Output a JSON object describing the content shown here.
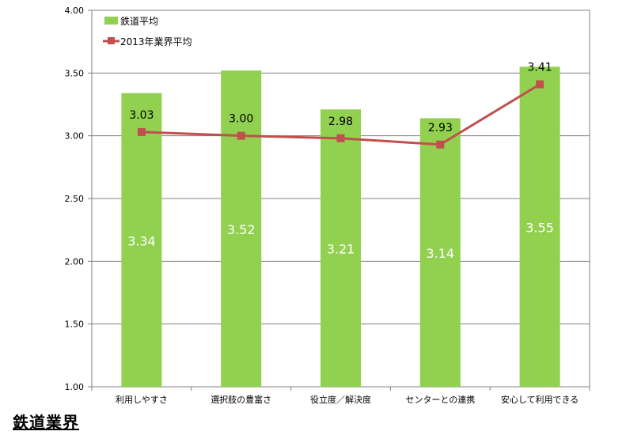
{
  "chart_data": {
    "type": "bar",
    "categories": [
      "利用しやすさ",
      "選択肢の豊富さ",
      "役立度／解決度",
      "センターとの連携",
      "安心して利用できる"
    ],
    "series": [
      {
        "name": "鉄道平均",
        "type": "bar",
        "color": "#92d050",
        "values": [
          3.34,
          3.52,
          3.21,
          3.14,
          3.55
        ],
        "value_labels": [
          "3.34",
          "3.52",
          "3.21",
          "3.14",
          "3.55"
        ]
      },
      {
        "name": "2013年業界平均",
        "type": "line",
        "color": "#c0504d",
        "values": [
          3.03,
          3.0,
          2.98,
          2.93,
          3.41
        ],
        "value_labels": [
          "3.03",
          "3.00",
          "2.98",
          "2.93",
          "3.41"
        ]
      }
    ],
    "ylim": [
      1.0,
      4.0
    ],
    "yticks": [
      "1.00",
      "1.50",
      "2.00",
      "2.50",
      "3.00",
      "3.50",
      "4.00"
    ],
    "grid": true,
    "legend": "top-left"
  },
  "footer": {
    "title": "鉄道業界"
  }
}
